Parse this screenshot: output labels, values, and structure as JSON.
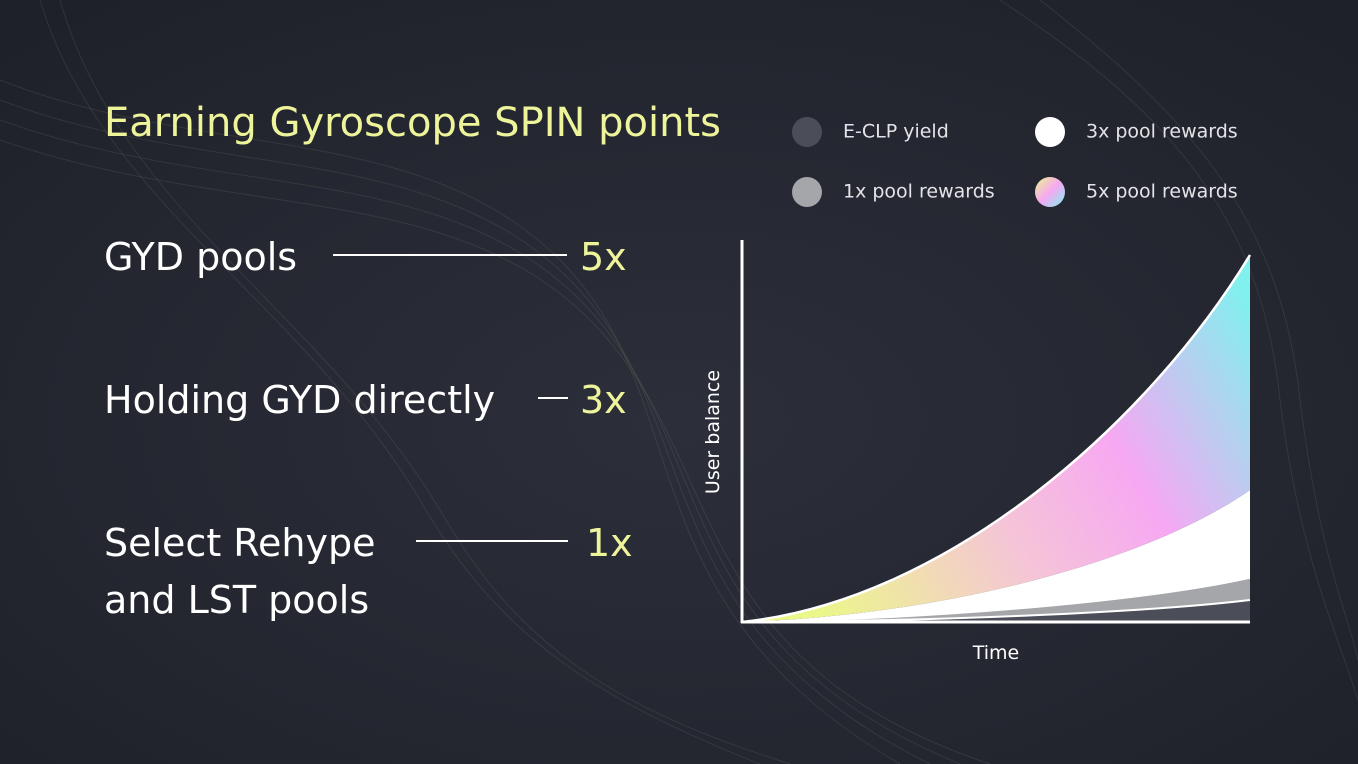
{
  "title": "Earning Gyroscope SPIN points",
  "items": [
    {
      "label_lines": [
        "GYD pools"
      ],
      "multiplier": "5x"
    },
    {
      "label_lines": [
        "Holding GYD directly"
      ],
      "multiplier": "3x"
    },
    {
      "label_lines": [
        "Select Rehype",
        "and LST pools"
      ],
      "multiplier": "1x"
    }
  ],
  "legend": [
    {
      "name": "E-CLP yield"
    },
    {
      "name": "3x pool rewards"
    },
    {
      "name": "1x pool rewards"
    },
    {
      "name": "5x pool rewards"
    }
  ],
  "axes": {
    "y_label": "User balance",
    "x_label": "Time"
  }
}
